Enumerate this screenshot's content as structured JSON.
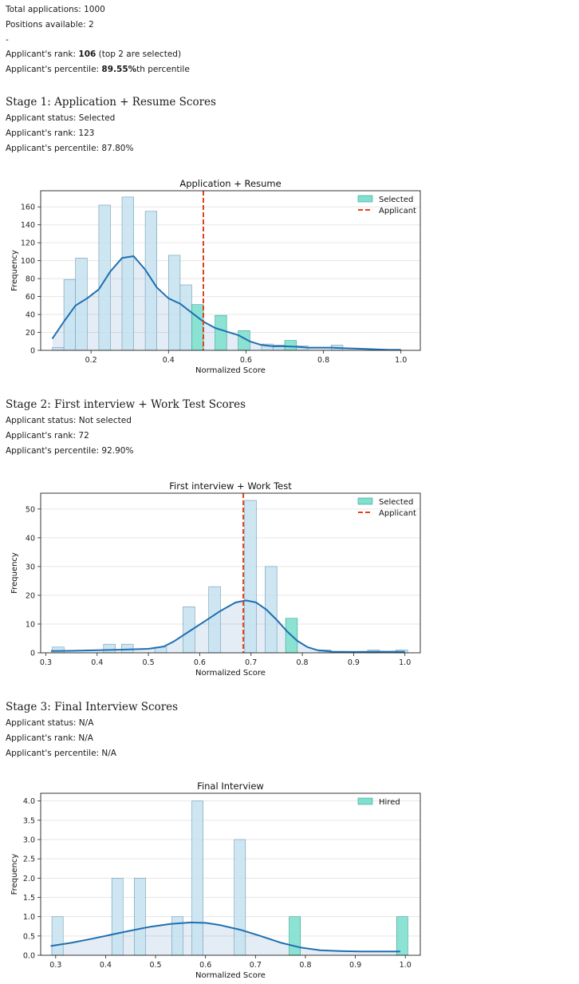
{
  "summary": {
    "total_applications": "Total applications: 1000",
    "positions": "Positions available: 2",
    "separator": "-",
    "rank_prefix": "Applicant's rank: ",
    "rank_value": "106",
    "rank_suffix": " (top 2 are selected)",
    "percentile_prefix": "Applicant's percentile: ",
    "percentile_value": "89.55%",
    "percentile_suffix": "th percentile"
  },
  "stages": [
    {
      "title": "Stage 1: Application + Resume Scores",
      "status": "Applicant status: Selected",
      "rank": "Applicant's rank: 123",
      "percentile": "Applicant's percentile: 87.80%"
    },
    {
      "title": "Stage 2: First interview + Work Test Scores",
      "status": "Applicant status: Not selected",
      "rank": "Applicant's rank: 72",
      "percentile": "Applicant's percentile: 92.90%"
    },
    {
      "title": "Stage 3: Final Interview Scores",
      "status": "Applicant status: N/A",
      "rank": "Applicant's rank: N/A",
      "percentile": "Applicant's percentile: N/A"
    }
  ],
  "colors": {
    "bar_fill": "#c6e2f0",
    "bar_overlap": "#a9d0e4",
    "bar_edge": "#6f9bb3",
    "selected_fill": "#7fe0cf",
    "selected_edge": "#3a9f8e",
    "kde": "#1f6fb0",
    "kde_fill": "#1f6fb0",
    "applicant": "#e2401c",
    "grid": "#e6e6e6",
    "axis": "#222222"
  },
  "chart_data": [
    {
      "type": "histogram",
      "title": "Application + Resume",
      "xlabel": "Normalized Score",
      "ylabel": "Frequency",
      "xlim": [
        0.07,
        1.05
      ],
      "ylim": [
        0,
        178
      ],
      "xticks": [
        0.2,
        0.4,
        0.6,
        0.8,
        1.0
      ],
      "xtick_labels": [
        "0.2",
        "0.4",
        "0.6",
        "0.8",
        "1.0"
      ],
      "yticks": [
        0,
        20,
        40,
        60,
        80,
        100,
        120,
        140,
        160
      ],
      "ytick_labels": [
        "0",
        "20",
        "40",
        "60",
        "80",
        "100",
        "120",
        "140",
        "160"
      ],
      "bar_width": 0.03,
      "bars": [
        {
          "x": 0.1,
          "value": 3,
          "group": "all"
        },
        {
          "x": 0.13,
          "value": 79,
          "group": "all"
        },
        {
          "x": 0.16,
          "value": 103,
          "group": "all"
        },
        {
          "x": 0.22,
          "value": 162,
          "group": "all"
        },
        {
          "x": 0.28,
          "value": 171,
          "group": "all"
        },
        {
          "x": 0.34,
          "value": 155,
          "group": "all"
        },
        {
          "x": 0.4,
          "value": 106,
          "group": "all"
        },
        {
          "x": 0.43,
          "value": 73,
          "group": "all"
        },
        {
          "x": 0.46,
          "value": 51,
          "group": "selected"
        },
        {
          "x": 0.52,
          "value": 39,
          "group": "selected"
        },
        {
          "x": 0.58,
          "value": 22,
          "group": "selected"
        },
        {
          "x": 0.64,
          "value": 7,
          "group": "all"
        },
        {
          "x": 0.67,
          "value": 6,
          "group": "all"
        },
        {
          "x": 0.7,
          "value": 11,
          "group": "selected"
        },
        {
          "x": 0.73,
          "value": 5,
          "group": "all"
        },
        {
          "x": 0.82,
          "value": 6,
          "group": "all"
        }
      ],
      "kde": [
        [
          0.1,
          13
        ],
        [
          0.13,
          32
        ],
        [
          0.16,
          50
        ],
        [
          0.19,
          58
        ],
        [
          0.22,
          68
        ],
        [
          0.25,
          88
        ],
        [
          0.28,
          103
        ],
        [
          0.31,
          105
        ],
        [
          0.34,
          90
        ],
        [
          0.37,
          70
        ],
        [
          0.4,
          58
        ],
        [
          0.43,
          52
        ],
        [
          0.46,
          42
        ],
        [
          0.49,
          32
        ],
        [
          0.52,
          25
        ],
        [
          0.55,
          21
        ],
        [
          0.58,
          17
        ],
        [
          0.61,
          10
        ],
        [
          0.64,
          6
        ],
        [
          0.67,
          4.5
        ],
        [
          0.7,
          4.5
        ],
        [
          0.73,
          4
        ],
        [
          0.76,
          3
        ],
        [
          0.79,
          3
        ],
        [
          0.82,
          3
        ],
        [
          0.85,
          2.5
        ],
        [
          0.88,
          2
        ],
        [
          0.91,
          1.5
        ],
        [
          0.94,
          1
        ],
        [
          0.97,
          0.5
        ],
        [
          1.0,
          0.5
        ]
      ],
      "applicant_x": 0.49,
      "legend": [
        {
          "label": "Selected",
          "kind": "selected"
        },
        {
          "label": "Applicant",
          "kind": "applicant"
        }
      ],
      "legend_position": "top-right"
    },
    {
      "type": "histogram",
      "title": "First interview + Work Test",
      "xlabel": "Normalized Score",
      "ylabel": "Frequency",
      "xlim": [
        0.29,
        1.03
      ],
      "ylim": [
        0,
        55.5
      ],
      "xticks": [
        0.3,
        0.4,
        0.5,
        0.6,
        0.7,
        0.8,
        0.9,
        1.0
      ],
      "xtick_labels": [
        "0.3",
        "0.4",
        "0.5",
        "0.6",
        "0.7",
        "0.8",
        "0.9",
        "1.0"
      ],
      "yticks": [
        0,
        10,
        20,
        30,
        40,
        50
      ],
      "ytick_labels": [
        "0",
        "10",
        "20",
        "30",
        "40",
        "50"
      ],
      "bar_width": 0.023,
      "bars": [
        {
          "x": 0.3125,
          "value": 2,
          "group": "all"
        },
        {
          "x": 0.4125,
          "value": 3,
          "group": "all"
        },
        {
          "x": 0.4475,
          "value": 3,
          "group": "all"
        },
        {
          "x": 0.5125,
          "value": 2,
          "group": "all"
        },
        {
          "x": 0.5675,
          "value": 16,
          "group": "all"
        },
        {
          "x": 0.6175,
          "value": 23,
          "group": "all"
        },
        {
          "x": 0.6875,
          "value": 53,
          "group": "all"
        },
        {
          "x": 0.7275,
          "value": 30,
          "group": "all"
        },
        {
          "x": 0.7675,
          "value": 12,
          "group": "selected"
        },
        {
          "x": 0.8325,
          "value": 1,
          "group": "all"
        },
        {
          "x": 0.9275,
          "value": 1,
          "group": "all"
        },
        {
          "x": 0.9825,
          "value": 1,
          "group": "all"
        }
      ],
      "kde": [
        [
          0.31,
          0.6
        ],
        [
          0.35,
          0.7
        ],
        [
          0.4,
          0.9
        ],
        [
          0.45,
          1.1
        ],
        [
          0.5,
          1.4
        ],
        [
          0.53,
          2.2
        ],
        [
          0.55,
          4
        ],
        [
          0.58,
          7.5
        ],
        [
          0.61,
          11
        ],
        [
          0.64,
          14.5
        ],
        [
          0.67,
          17.5
        ],
        [
          0.69,
          18.2
        ],
        [
          0.71,
          17.5
        ],
        [
          0.73,
          15
        ],
        [
          0.75,
          11.5
        ],
        [
          0.77,
          7.5
        ],
        [
          0.79,
          4.2
        ],
        [
          0.81,
          2
        ],
        [
          0.83,
          0.9
        ],
        [
          0.86,
          0.4
        ],
        [
          0.9,
          0.3
        ],
        [
          0.95,
          0.4
        ],
        [
          1.0,
          0.4
        ]
      ],
      "applicant_x": 0.685,
      "legend": [
        {
          "label": "Selected",
          "kind": "selected"
        },
        {
          "label": "Applicant",
          "kind": "applicant"
        }
      ],
      "legend_position": "top-right"
    },
    {
      "type": "histogram",
      "title": "Final Interview",
      "xlabel": "Normalized Score",
      "ylabel": "Frequency",
      "xlim": [
        0.27,
        1.03
      ],
      "ylim": [
        0,
        4.2
      ],
      "xticks": [
        0.3,
        0.4,
        0.5,
        0.6,
        0.7,
        0.8,
        0.9,
        1.0
      ],
      "xtick_labels": [
        "0.3",
        "0.4",
        "0.5",
        "0.6",
        "0.7",
        "0.8",
        "0.9",
        "1.0"
      ],
      "yticks": [
        0,
        0.5,
        1.0,
        1.5,
        2.0,
        2.5,
        3.0,
        3.5,
        4.0
      ],
      "ytick_labels": [
        "0.0",
        "0.5",
        "1.0",
        "1.5",
        "2.0",
        "2.5",
        "3.0",
        "3.5",
        "4.0"
      ],
      "bar_width": 0.0225,
      "bars": [
        {
          "x": 0.2925,
          "value": 1,
          "group": "all"
        },
        {
          "x": 0.4125,
          "value": 2,
          "group": "all"
        },
        {
          "x": 0.4575,
          "value": 2,
          "group": "all"
        },
        {
          "x": 0.5325,
          "value": 1,
          "group": "all"
        },
        {
          "x": 0.5725,
          "value": 4,
          "group": "all"
        },
        {
          "x": 0.6575,
          "value": 3,
          "group": "all"
        },
        {
          "x": 0.7675,
          "value": 1,
          "group": "selected"
        },
        {
          "x": 0.9825,
          "value": 1,
          "group": "selected"
        }
      ],
      "kde": [
        [
          0.29,
          0.24
        ],
        [
          0.33,
          0.32
        ],
        [
          0.37,
          0.42
        ],
        [
          0.41,
          0.53
        ],
        [
          0.45,
          0.64
        ],
        [
          0.49,
          0.74
        ],
        [
          0.53,
          0.81
        ],
        [
          0.57,
          0.85
        ],
        [
          0.6,
          0.84
        ],
        [
          0.63,
          0.78
        ],
        [
          0.67,
          0.66
        ],
        [
          0.71,
          0.5
        ],
        [
          0.75,
          0.33
        ],
        [
          0.79,
          0.2
        ],
        [
          0.83,
          0.13
        ],
        [
          0.87,
          0.11
        ],
        [
          0.91,
          0.1
        ],
        [
          0.95,
          0.1
        ],
        [
          0.99,
          0.1
        ]
      ],
      "applicant_x": null,
      "legend": [
        {
          "label": "Hired",
          "kind": "selected"
        }
      ],
      "legend_position": "top-right"
    }
  ]
}
